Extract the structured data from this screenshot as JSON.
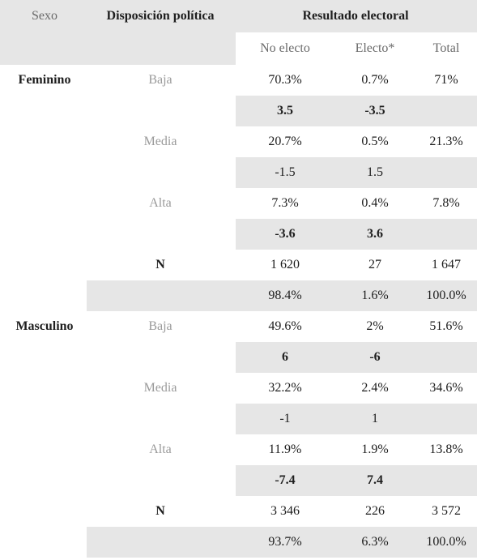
{
  "header": {
    "sexo": "Sexo",
    "disposicion": "Disposición política",
    "resultado": "Resultado electoral",
    "no_electo": "No electo",
    "electo": "Electo*",
    "total": "Total"
  },
  "femenino": {
    "label": "Feminino",
    "baja": {
      "label": "Baja",
      "no_electo": "70.3%",
      "electo": "0.7%",
      "total": "71%"
    },
    "baja_res": {
      "no_electo": "3.5",
      "electo": "-3.5"
    },
    "media": {
      "label": "Media",
      "no_electo": "20.7%",
      "electo": "0.5%",
      "total": "21.3%"
    },
    "media_res": {
      "no_electo": "-1.5",
      "electo": "1.5"
    },
    "alta": {
      "label": "Alta",
      "no_electo": "7.3%",
      "electo": "0.4%",
      "total": "7.8%"
    },
    "alta_res": {
      "no_electo": "-3.6",
      "electo": "3.6"
    },
    "n": {
      "label": "N",
      "no_electo": "1 620",
      "electo": "27",
      "total": "1 647"
    },
    "pct": {
      "no_electo": "98.4%",
      "electo": "1.6%",
      "total": "100.0%"
    }
  },
  "masculino": {
    "label": "Masculino",
    "baja": {
      "label": "Baja",
      "no_electo": "49.6%",
      "electo": "2%",
      "total": "51.6%"
    },
    "baja_res": {
      "no_electo": "6",
      "electo": "-6"
    },
    "media": {
      "label": "Media",
      "no_electo": "32.2%",
      "electo": "2.4%",
      "total": "34.6%"
    },
    "media_res": {
      "no_electo": "-1",
      "electo": "1"
    },
    "alta": {
      "label": "Alta",
      "no_electo": "11.9%",
      "electo": "1.9%",
      "total": "13.8%"
    },
    "alta_res": {
      "no_electo": "-7.4",
      "electo": "7.4"
    },
    "n": {
      "label": "N",
      "no_electo": "3 346",
      "electo": "226",
      "total": "3 572"
    },
    "pct": {
      "no_electo": "93.7%",
      "electo": "6.3%",
      "total": "100.0%"
    }
  }
}
